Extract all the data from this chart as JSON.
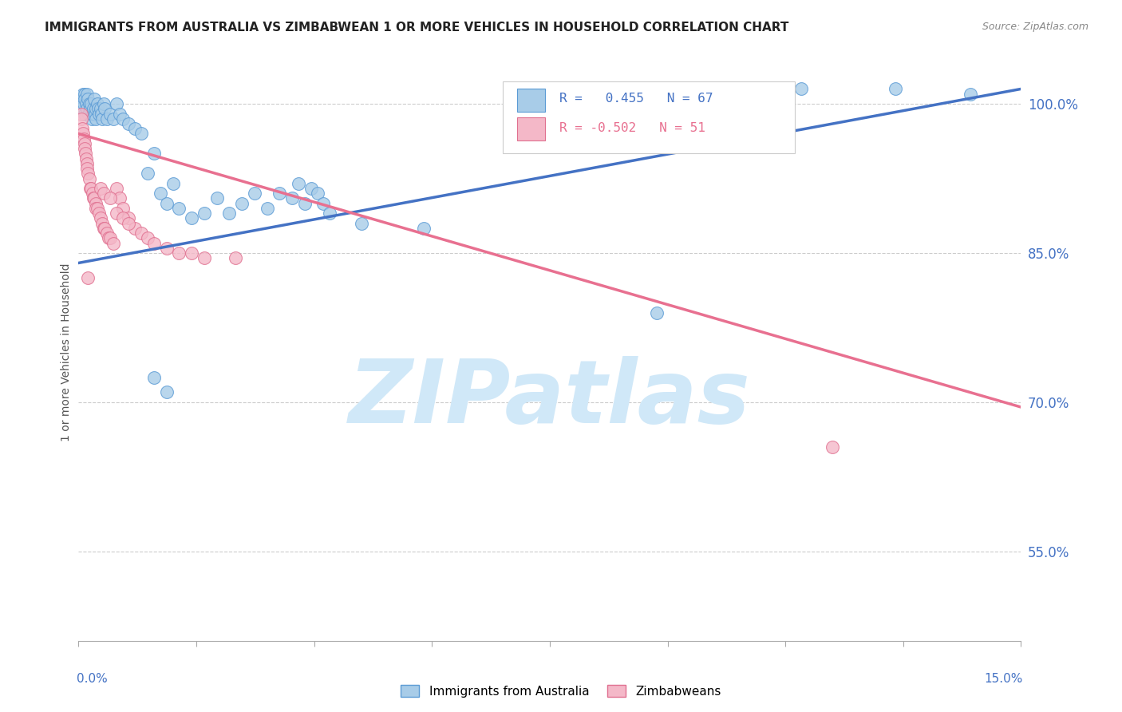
{
  "title": "IMMIGRANTS FROM AUSTRALIA VS ZIMBABWEAN 1 OR MORE VEHICLES IN HOUSEHOLD CORRELATION CHART",
  "source": "Source: ZipAtlas.com",
  "ylabel": "1 or more Vehicles in Household",
  "yticks": [
    55.0,
    70.0,
    85.0,
    100.0
  ],
  "xlim": [
    0.0,
    15.0
  ],
  "ylim": [
    46.0,
    104.0
  ],
  "blue_r": "0.455",
  "blue_n": "67",
  "pink_r": "-0.502",
  "pink_n": "51",
  "legend_label_blue": "Immigrants from Australia",
  "legend_label_pink": "Zimbabweans",
  "blue_fill": "#a8cce8",
  "blue_edge": "#5b9bd5",
  "pink_fill": "#f4b8c8",
  "pink_edge": "#e07090",
  "blue_line": "#4472c4",
  "pink_line": "#e87090",
  "watermark_text": "ZIPatlas",
  "watermark_color": "#d0e8f8",
  "blue_scatter_x": [
    0.05,
    0.07,
    0.08,
    0.09,
    0.1,
    0.1,
    0.12,
    0.13,
    0.14,
    0.15,
    0.16,
    0.17,
    0.18,
    0.2,
    0.21,
    0.22,
    0.23,
    0.25,
    0.26,
    0.27,
    0.28,
    0.3,
    0.31,
    0.33,
    0.35,
    0.36,
    0.38,
    0.4,
    0.42,
    0.45,
    0.5,
    0.55,
    0.6,
    0.65,
    0.7,
    0.8,
    0.9,
    1.0,
    1.1,
    1.2,
    1.3,
    1.4,
    1.5,
    1.6,
    1.8,
    2.0,
    2.2,
    2.4,
    2.6,
    2.8,
    3.0,
    3.2,
    3.4,
    3.5,
    3.6,
    3.7,
    3.8,
    3.9,
    4.0,
    4.5,
    5.5,
    9.2,
    11.5,
    13.0,
    14.2,
    1.2,
    1.4
  ],
  "blue_scatter_y": [
    99.5,
    101.0,
    100.0,
    101.0,
    100.5,
    99.0,
    100.0,
    99.5,
    101.0,
    100.5,
    99.0,
    100.0,
    99.5,
    100.0,
    98.5,
    99.0,
    99.5,
    100.5,
    99.0,
    98.5,
    99.5,
    100.0,
    99.5,
    99.0,
    99.5,
    99.0,
    98.5,
    100.0,
    99.5,
    98.5,
    99.0,
    98.5,
    100.0,
    99.0,
    98.5,
    98.0,
    97.5,
    97.0,
    93.0,
    95.0,
    91.0,
    90.0,
    92.0,
    89.5,
    88.5,
    89.0,
    90.5,
    89.0,
    90.0,
    91.0,
    89.5,
    91.0,
    90.5,
    92.0,
    90.0,
    91.5,
    91.0,
    90.0,
    89.0,
    88.0,
    87.5,
    79.0,
    101.5,
    101.5,
    101.0,
    72.5,
    71.0
  ],
  "pink_scatter_x": [
    0.04,
    0.05,
    0.06,
    0.07,
    0.08,
    0.09,
    0.1,
    0.11,
    0.12,
    0.13,
    0.14,
    0.15,
    0.17,
    0.18,
    0.2,
    0.22,
    0.23,
    0.25,
    0.27,
    0.28,
    0.3,
    0.32,
    0.35,
    0.38,
    0.4,
    0.42,
    0.45,
    0.48,
    0.5,
    0.55,
    0.6,
    0.65,
    0.7,
    0.8,
    0.9,
    1.0,
    1.1,
    1.2,
    1.4,
    1.6,
    1.8,
    2.0,
    2.5,
    0.35,
    0.4,
    0.5,
    0.6,
    0.7,
    0.8,
    0.15,
    12.0
  ],
  "pink_scatter_y": [
    99.0,
    98.5,
    97.5,
    97.0,
    96.5,
    96.0,
    95.5,
    95.0,
    94.5,
    94.0,
    93.5,
    93.0,
    92.5,
    91.5,
    91.5,
    91.0,
    90.5,
    90.5,
    90.0,
    89.5,
    89.5,
    89.0,
    88.5,
    88.0,
    87.5,
    87.5,
    87.0,
    86.5,
    86.5,
    86.0,
    91.5,
    90.5,
    89.5,
    88.5,
    87.5,
    87.0,
    86.5,
    86.0,
    85.5,
    85.0,
    85.0,
    84.5,
    84.5,
    91.5,
    91.0,
    90.5,
    89.0,
    88.5,
    88.0,
    82.5,
    65.5
  ],
  "blue_trend": [
    0.0,
    15.0,
    84.0,
    101.5
  ],
  "pink_trend": [
    0.0,
    15.0,
    97.0,
    69.5
  ]
}
